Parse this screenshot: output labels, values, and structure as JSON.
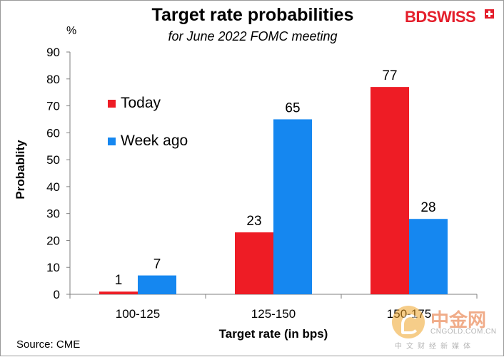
{
  "header": {
    "brand": "BDSWISS",
    "unit": "%"
  },
  "footer": {
    "source": "Source: CME"
  },
  "watermark": {
    "cn": "中金网",
    "en": "CNGOLD.COM.CN",
    "sub": "中文财经新媒体"
  },
  "chart_data": {
    "type": "bar",
    "title": "Target rate probabilities",
    "subtitle": "for June 2022 FOMC meeting",
    "xlabel": "Target rate (in bps)",
    "ylabel": "Probablity",
    "ylim": [
      0,
      90
    ],
    "yticks": [
      "0",
      "10",
      "20",
      "30",
      "40",
      "50",
      "60",
      "70",
      "80",
      "90"
    ],
    "categories": [
      "100-125",
      "125-150",
      "150-175"
    ],
    "series": [
      {
        "name": "Today",
        "color": "#ee1c25",
        "values": [
          1,
          23,
          77
        ]
      },
      {
        "name": "Week ago",
        "color": "#1587f0",
        "values": [
          7,
          65,
          28
        ]
      }
    ],
    "legend": "top-left",
    "grid": false
  }
}
